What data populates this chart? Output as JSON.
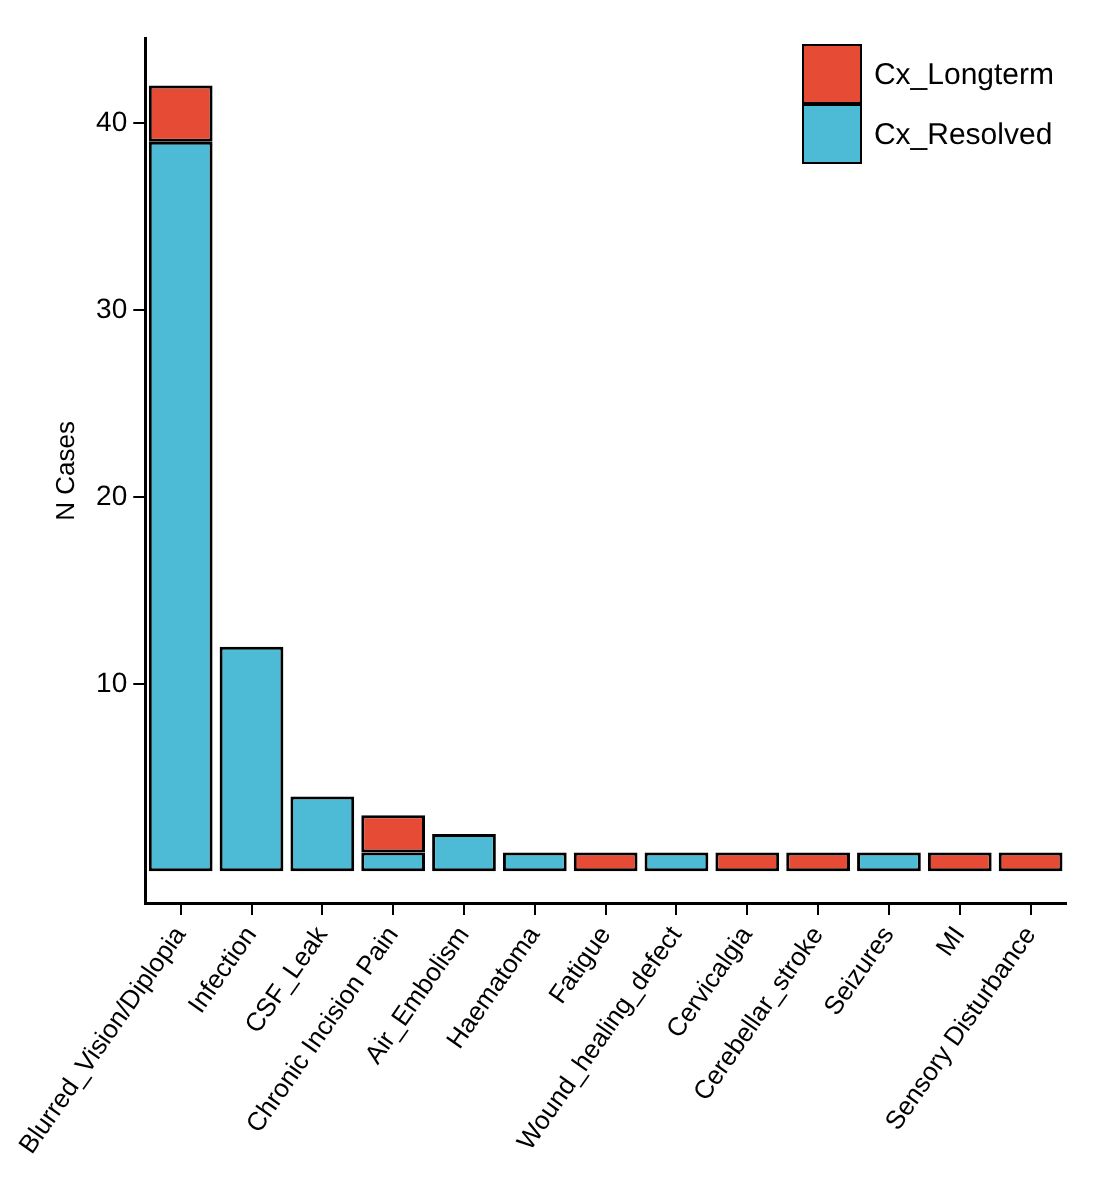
{
  "chart_data": {
    "type": "bar",
    "ylabel": "N Cases",
    "categories": [
      "Blurred_Vision/Diplopia",
      "Infection",
      "CSF_Leak",
      "Chronic Incision Pain",
      "Air_Embolism",
      "Haematoma",
      "Fatigue",
      "Wound_healing_defect",
      "Cervicalgia",
      "Cerebellar_stroke",
      "Seizures",
      "MI",
      "Sensory Disturbance"
    ],
    "series": [
      {
        "name": "Cx_Resolved",
        "color": "#4dbbd5",
        "values": [
          39,
          12,
          4,
          1,
          2,
          1,
          null,
          1,
          null,
          null,
          1,
          null,
          null
        ]
      },
      {
        "name": "Cx_Longterm",
        "color": "#e64b35",
        "values": [
          3,
          null,
          null,
          2,
          null,
          null,
          1,
          null,
          1,
          1,
          null,
          1,
          1
        ]
      }
    ],
    "stacked": true,
    "ylim": [
      -1.7,
      44.5
    ],
    "yticks": [
      10,
      20,
      30,
      40
    ],
    "grid": false,
    "legend": "top right"
  }
}
